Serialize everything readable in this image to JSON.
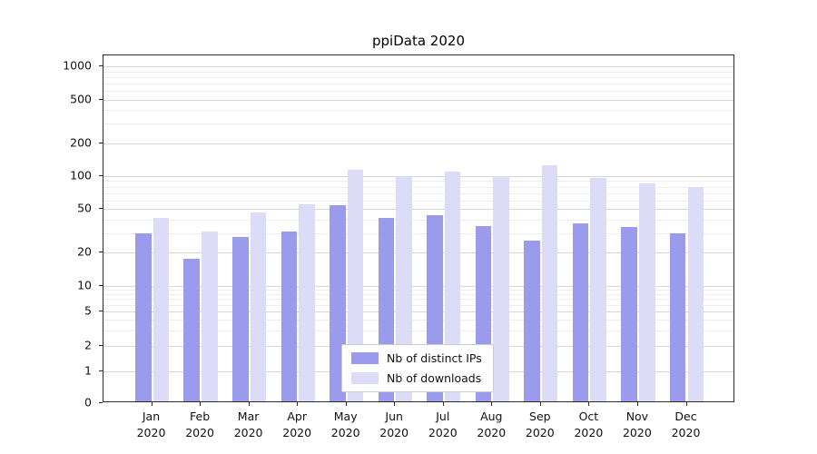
{
  "title": "ppiData 2020",
  "chart_data": {
    "type": "bar",
    "title": "ppiData 2020",
    "yscale": "symlog",
    "grid": true,
    "legend_position": "lower-center-inside",
    "yticks": [
      0,
      1,
      2,
      5,
      10,
      20,
      50,
      100,
      200,
      500,
      1000
    ],
    "y_minor_ticks": [
      3,
      4,
      6,
      7,
      8,
      9,
      30,
      40,
      60,
      70,
      80,
      90,
      300,
      400,
      600,
      700,
      800,
      900
    ],
    "ylim": [
      0,
      1400
    ],
    "categories": [
      "Jan 2020",
      "Feb 2020",
      "Mar 2020",
      "Apr 2020",
      "May 2020",
      "Jun 2020",
      "Jul 2020",
      "Aug 2020",
      "Sep 2020",
      "Oct 2020",
      "Nov 2020",
      "Dec 2020"
    ],
    "series": [
      {
        "name": "Nb of distinct IPs",
        "color": "#9b9bee",
        "values": [
          29,
          17,
          27,
          30,
          52,
          40,
          42,
          34,
          25,
          36,
          33,
          29
        ]
      },
      {
        "name": "Nb of downloads",
        "color": "#dcdcf8",
        "values": [
          40,
          30,
          45,
          53,
          110,
          97,
          105,
          97,
          122,
          93,
          82,
          77
        ]
      }
    ]
  }
}
